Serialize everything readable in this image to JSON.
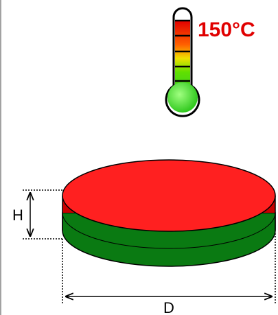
{
  "temperature": {
    "label": "150°C"
  },
  "dimensions": {
    "height": "H",
    "diameter": "D"
  }
}
